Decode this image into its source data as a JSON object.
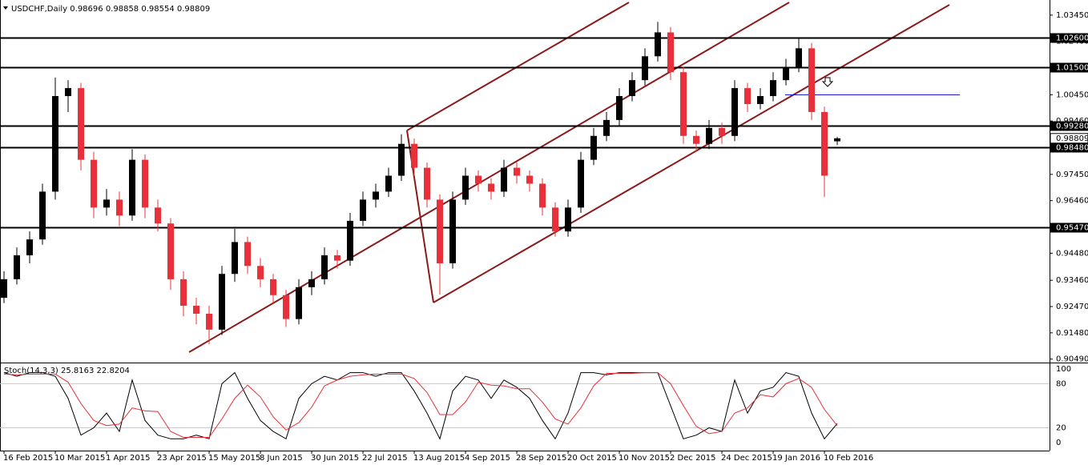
{
  "chart_data": {
    "type": "candlestick",
    "title": "USDCHF,Daily  0.98696 0.98858 0.98554 0.98809",
    "up_color": "#000000",
    "down_color": "#e8303a",
    "categories": [
      "16 Feb 2015",
      null,
      null,
      null,
      "10 Mar 2015",
      null,
      null,
      null,
      "1 Apr 2015",
      null,
      null,
      null,
      "23 Apr 2015",
      null,
      null,
      null,
      "15 May 2015",
      null,
      null,
      null,
      "8 Jun 2015",
      null,
      null,
      null,
      "30 Jun 2015",
      null,
      null,
      null,
      "22 Jul 2015",
      null,
      null,
      null,
      "13 Aug 2015",
      null,
      null,
      null,
      "4 Sep 2015",
      null,
      null,
      null,
      "28 Sep 2015",
      null,
      null,
      null,
      "20 Oct 2015",
      null,
      null,
      null,
      "10 Nov 2015",
      null,
      null,
      null,
      "2 Dec 2015",
      null,
      null,
      null,
      "24 Dec 2015",
      null,
      null,
      null,
      "19 Jan 2016",
      null,
      null,
      null,
      "10 Feb 2016",
      null
    ],
    "ohlc": [
      [
        0.928,
        0.938,
        0.926,
        0.935
      ],
      [
        0.935,
        0.947,
        0.933,
        0.944
      ],
      [
        0.944,
        0.953,
        0.941,
        0.95
      ],
      [
        0.95,
        0.971,
        0.948,
        0.968
      ],
      [
        0.968,
        1.011,
        0.965,
        1.004
      ],
      [
        1.004,
        1.01,
        0.998,
        1.007
      ],
      [
        1.007,
        1.009,
        0.976,
        0.98
      ],
      [
        0.98,
        0.983,
        0.958,
        0.962
      ],
      [
        0.962,
        0.969,
        0.959,
        0.965
      ],
      [
        0.965,
        0.968,
        0.955,
        0.959
      ],
      [
        0.959,
        0.984,
        0.957,
        0.98
      ],
      [
        0.98,
        0.982,
        0.958,
        0.962
      ],
      [
        0.962,
        0.965,
        0.953,
        0.956
      ],
      [
        0.956,
        0.958,
        0.931,
        0.935
      ],
      [
        0.935,
        0.938,
        0.921,
        0.925
      ],
      [
        0.925,
        0.928,
        0.918,
        0.922
      ],
      [
        0.922,
        0.925,
        0.9105,
        0.916
      ],
      [
        0.916,
        0.94,
        0.914,
        0.937
      ],
      [
        0.937,
        0.954,
        0.934,
        0.949
      ],
      [
        0.949,
        0.951,
        0.937,
        0.94
      ],
      [
        0.94,
        0.943,
        0.932,
        0.935
      ],
      [
        0.935,
        0.937,
        0.926,
        0.929
      ],
      [
        0.929,
        0.931,
        0.917,
        0.92
      ],
      [
        0.92,
        0.935,
        0.918,
        0.932
      ],
      [
        0.932,
        0.938,
        0.929,
        0.935
      ],
      [
        0.935,
        0.947,
        0.933,
        0.944
      ],
      [
        0.944,
        0.946,
        0.939,
        0.942
      ],
      [
        0.942,
        0.96,
        0.94,
        0.957
      ],
      [
        0.957,
        0.968,
        0.955,
        0.965
      ],
      [
        0.965,
        0.971,
        0.962,
        0.968
      ],
      [
        0.968,
        0.977,
        0.966,
        0.974
      ],
      [
        0.974,
        0.9896,
        0.972,
        0.986
      ],
      [
        0.986,
        0.988,
        0.974,
        0.977
      ],
      [
        0.977,
        0.979,
        0.962,
        0.965
      ],
      [
        0.965,
        0.967,
        0.9292,
        0.941
      ],
      [
        0.941,
        0.968,
        0.939,
        0.965
      ],
      [
        0.965,
        0.977,
        0.963,
        0.974
      ],
      [
        0.974,
        0.976,
        0.968,
        0.971
      ],
      [
        0.971,
        0.973,
        0.965,
        0.968
      ],
      [
        0.968,
        0.98,
        0.966,
        0.977
      ],
      [
        0.977,
        0.979,
        0.971,
        0.974
      ],
      [
        0.974,
        0.976,
        0.968,
        0.971
      ],
      [
        0.971,
        0.973,
        0.959,
        0.962
      ],
      [
        0.962,
        0.964,
        0.951,
        0.953
      ],
      [
        0.953,
        0.965,
        0.951,
        0.962
      ],
      [
        0.962,
        0.983,
        0.96,
        0.98
      ],
      [
        0.98,
        0.992,
        0.978,
        0.989
      ],
      [
        0.989,
        0.998,
        0.987,
        0.995
      ],
      [
        0.995,
        1.007,
        0.993,
        1.004
      ],
      [
        1.004,
        1.013,
        1.002,
        1.01
      ],
      [
        1.01,
        1.022,
        1.008,
        1.019
      ],
      [
        1.019,
        1.032,
        1.017,
        1.028
      ],
      [
        1.028,
        1.03,
        1.01,
        1.013
      ],
      [
        1.013,
        1.015,
        0.986,
        0.989
      ],
      [
        0.989,
        0.991,
        0.983,
        0.986
      ],
      [
        0.986,
        0.995,
        0.984,
        0.992
      ],
      [
        0.992,
        0.994,
        0.986,
        0.989
      ],
      [
        0.989,
        1.01,
        0.987,
        1.007
      ],
      [
        1.007,
        1.009,
        0.998,
        1.001
      ],
      [
        1.001,
        1.007,
        0.999,
        1.004
      ],
      [
        1.004,
        1.013,
        1.002,
        1.01
      ],
      [
        1.01,
        1.018,
        1.008,
        1.015
      ],
      [
        1.015,
        1.026,
        1.013,
        1.022
      ],
      [
        1.022,
        1.024,
        0.995,
        0.998
      ],
      [
        0.998,
        1.0,
        0.966,
        0.974
      ],
      [
        0.98696,
        0.98858,
        0.98554,
        0.98809
      ]
    ],
    "ylim": [
      0.9036,
      1.0402
    ],
    "yticks": [
      {
        "value": 1.0345,
        "label": "1.03450"
      },
      {
        "value": 1.0246,
        "label": "1.02460"
      },
      {
        "value": 1.0147,
        "label": "1.01470"
      },
      {
        "value": 1.0045,
        "label": "1.00450"
      },
      {
        "value": 0.9946,
        "label": "0.99460"
      },
      {
        "value": 0.9847,
        "label": "0.98470"
      },
      {
        "value": 0.9745,
        "label": "0.97450"
      },
      {
        "value": 0.9646,
        "label": "0.96460"
      },
      {
        "value": 0.9547,
        "label": "0.95470"
      },
      {
        "value": 0.9448,
        "label": "0.94480"
      },
      {
        "value": 0.9346,
        "label": "0.93460"
      },
      {
        "value": 0.9247,
        "label": "0.92470"
      },
      {
        "value": 0.9148,
        "label": "0.91480"
      },
      {
        "value": 0.9049,
        "label": "0.90490"
      }
    ],
    "levels": [
      {
        "value": 1.026,
        "label": "1.02600"
      },
      {
        "value": 1.015,
        "label": "1.01500"
      },
      {
        "value": 0.9928,
        "label": "0.99280"
      },
      {
        "value": 0.9848,
        "label": "0.98480"
      },
      {
        "value": 0.9547,
        "label": "0.95470"
      }
    ],
    "last_price": {
      "value": 0.98809,
      "label": "0.98809"
    },
    "indicator": {
      "title": "Stoch(14,3,3) 25.8163 22.8204",
      "ylim": [
        -11,
        106.5
      ],
      "yticks": [
        100,
        80,
        20,
        0
      ],
      "series": [
        {
          "color": "#000000",
          "values": [
            95,
            90,
            95,
            95,
            90,
            60,
            10,
            20,
            40,
            15,
            85,
            30,
            10,
            5,
            5,
            10,
            5,
            80,
            95,
            60,
            30,
            15,
            5,
            60,
            80,
            90,
            85,
            95,
            95,
            90,
            95,
            95,
            70,
            40,
            5,
            70,
            90,
            85,
            60,
            85,
            75,
            60,
            30,
            5,
            40,
            95,
            95,
            92,
            95,
            95,
            95,
            95,
            50,
            5,
            10,
            20,
            15,
            85,
            40,
            70,
            75,
            95,
            90,
            40,
            5,
            25.8163
          ]
        },
        {
          "color": "#e8303a",
          "values": [
            93,
            92,
            93,
            93,
            93,
            82,
            53,
            30,
            23,
            25,
            47,
            43,
            42,
            15,
            7,
            7,
            7,
            32,
            60,
            78,
            62,
            35,
            17,
            27,
            48,
            77,
            85,
            90,
            92,
            93,
            93,
            93,
            87,
            68,
            38,
            38,
            55,
            82,
            78,
            77,
            73,
            73,
            55,
            32,
            25,
            47,
            77,
            94,
            94,
            94,
            95,
            95,
            80,
            50,
            22,
            12,
            15,
            40,
            47,
            65,
            62,
            80,
            87,
            75,
            45,
            22.8204
          ]
        }
      ]
    }
  }
}
